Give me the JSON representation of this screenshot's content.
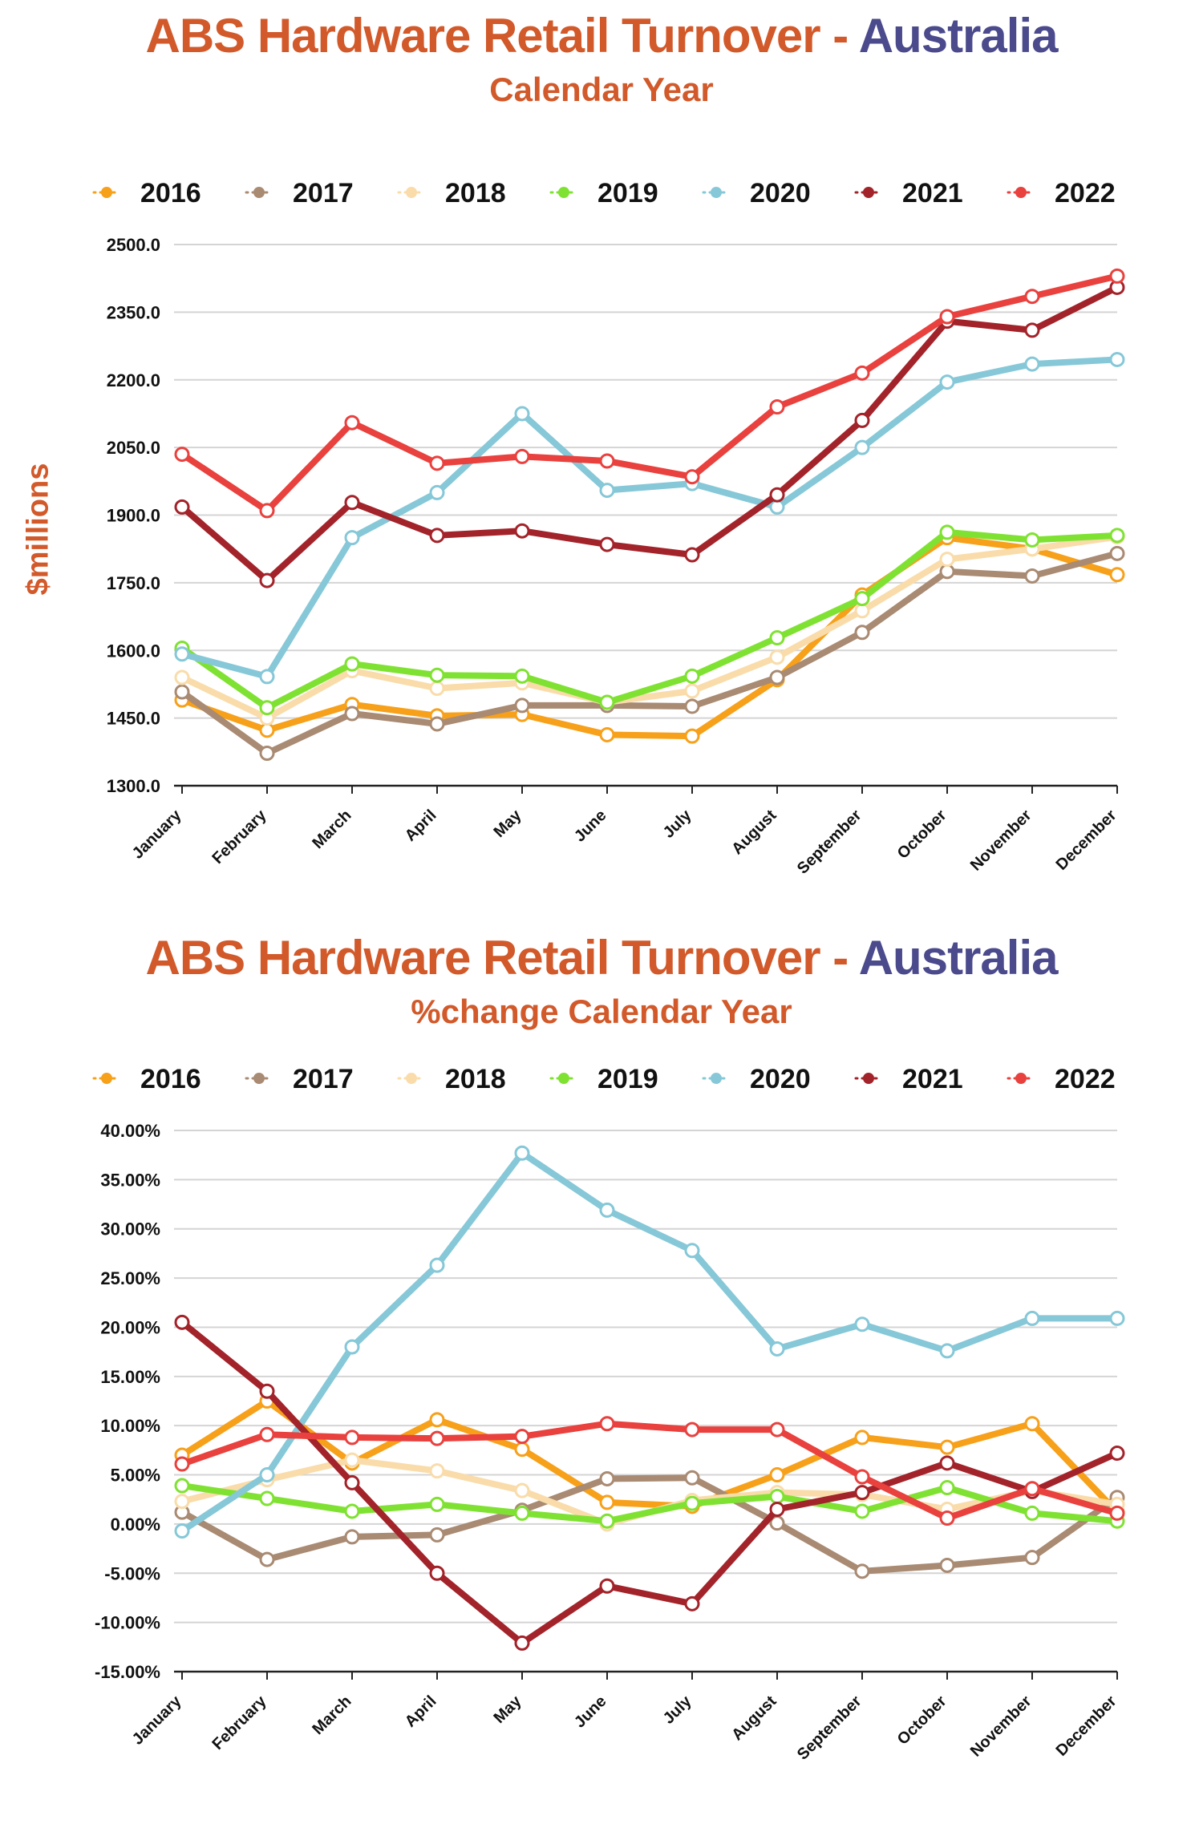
{
  "charts": [
    {
      "title_main": "ABS Hardware Retail Turnover - ",
      "title_accent": "Australia",
      "subtitle": "Calendar Year",
      "ylabel": "$millions",
      "legend": [
        {
          "name": "2016",
          "color": "#f7a01a"
        },
        {
          "name": "2017",
          "color": "#a98a72"
        },
        {
          "name": "2018",
          "color": "#f9dcaa"
        },
        {
          "name": "2019",
          "color": "#7fe232"
        },
        {
          "name": "2020",
          "color": "#86c8d8"
        },
        {
          "name": "2021",
          "color": "#a3232a"
        },
        {
          "name": "2022",
          "color": "#e8413e"
        }
      ]
    },
    {
      "title_main": "ABS Hardware Retail Turnover - ",
      "title_accent": "Australia",
      "subtitle": "%change Calendar Year",
      "ylabel": "",
      "legend": [
        {
          "name": "2016",
          "color": "#f7a01a"
        },
        {
          "name": "2017",
          "color": "#a98a72"
        },
        {
          "name": "2018",
          "color": "#f9dcaa"
        },
        {
          "name": "2019",
          "color": "#7fe232"
        },
        {
          "name": "2020",
          "color": "#86c8d8"
        },
        {
          "name": "2021",
          "color": "#a3232a"
        },
        {
          "name": "2022",
          "color": "#e8413e"
        }
      ]
    }
  ],
  "chart_data": [
    {
      "type": "line",
      "title": "ABS Hardware Retail Turnover - Australia",
      "subtitle": "Calendar Year",
      "ylabel": "$millions",
      "xlabel": "",
      "ylim": [
        1300,
        2500
      ],
      "yticks": [
        1300,
        1450,
        1600,
        1750,
        1900,
        2050,
        2200,
        2350,
        2500
      ],
      "ytick_labels": [
        "1300.0",
        "1450.0",
        "1600.0",
        "1750.0",
        "1900.0",
        "2050.0",
        "2200.0",
        "2350.0",
        "2500.0"
      ],
      "grid": "horizontal",
      "legend": "top",
      "categories": [
        "January",
        "February",
        "March",
        "April",
        "May",
        "June",
        "July",
        "August",
        "September",
        "October",
        "November",
        "December"
      ],
      "series": [
        {
          "name": "2016",
          "color": "#f7a01a",
          "values": [
            1490,
            1423,
            1480,
            1455,
            1458,
            1413,
            1410,
            1535,
            1723,
            1850,
            1825,
            1768
          ]
        },
        {
          "name": "2017",
          "color": "#a98a72",
          "values": [
            1508,
            1372,
            1460,
            1437,
            1478,
            1478,
            1476,
            1540,
            1640,
            1775,
            1765,
            1815
          ]
        },
        {
          "name": "2018",
          "color": "#f9dcaa",
          "values": [
            1540,
            1450,
            1555,
            1516,
            1528,
            1485,
            1510,
            1585,
            1688,
            1802,
            1825,
            1852
          ]
        },
        {
          "name": "2019",
          "color": "#7fe232",
          "values": [
            1605,
            1473,
            1570,
            1545,
            1543,
            1485,
            1543,
            1628,
            1715,
            1862,
            1845,
            1855
          ]
        },
        {
          "name": "2020",
          "color": "#86c8d8",
          "values": [
            1592,
            1542,
            1850,
            1950,
            2125,
            1955,
            1970,
            1918,
            2050,
            2195,
            2235,
            2245
          ]
        },
        {
          "name": "2021",
          "color": "#a3232a",
          "values": [
            1918,
            1755,
            1928,
            1855,
            1865,
            1835,
            1812,
            1945,
            2110,
            2330,
            2310,
            2405
          ]
        },
        {
          "name": "2022",
          "color": "#e8413e",
          "values": [
            2035,
            1910,
            2105,
            2015,
            2030,
            2020,
            1985,
            2140,
            2215,
            2340,
            2385,
            2430
          ]
        }
      ]
    },
    {
      "type": "line",
      "title": "ABS Hardware Retail Turnover - Australia",
      "subtitle": "%change Calendar Year",
      "ylabel": "",
      "xlabel": "",
      "ylim": [
        -15,
        40
      ],
      "yticks": [
        -15,
        -10,
        -5,
        0,
        5,
        10,
        15,
        20,
        25,
        30,
        35,
        40
      ],
      "ytick_labels": [
        "-15.00%",
        "-10.00%",
        "-5.00%",
        "0.00%",
        "5.00%",
        "10.00%",
        "15.00%",
        "20.00%",
        "25.00%",
        "30.00%",
        "35.00%",
        "40.00%"
      ],
      "grid": "horizontal",
      "legend": "top",
      "categories": [
        "January",
        "February",
        "March",
        "April",
        "May",
        "June",
        "July",
        "August",
        "September",
        "October",
        "November",
        "December"
      ],
      "series": [
        {
          "name": "2016",
          "color": "#f7a01a",
          "values": [
            7.0,
            12.5,
            6.2,
            10.6,
            7.6,
            2.2,
            1.8,
            5.0,
            8.8,
            7.8,
            10.2,
            1.2
          ]
        },
        {
          "name": "2017",
          "color": "#a98a72",
          "values": [
            1.2,
            -3.6,
            -1.3,
            -1.1,
            1.4,
            4.6,
            4.7,
            0.1,
            -4.8,
            -4.2,
            -3.4,
            2.7
          ]
        },
        {
          "name": "2018",
          "color": "#f9dcaa",
          "values": [
            2.3,
            4.5,
            6.5,
            5.4,
            3.4,
            0.0,
            2.4,
            3.2,
            3.0,
            1.5,
            3.4,
            2.0
          ]
        },
        {
          "name": "2019",
          "color": "#7fe232",
          "values": [
            3.9,
            2.6,
            1.3,
            2.0,
            1.1,
            0.3,
            2.1,
            2.8,
            1.3,
            3.7,
            1.1,
            0.3
          ]
        },
        {
          "name": "2020",
          "color": "#86c8d8",
          "values": [
            -0.7,
            5.0,
            18.0,
            26.3,
            37.7,
            31.9,
            27.8,
            17.8,
            20.3,
            17.6,
            20.9,
            20.9
          ]
        },
        {
          "name": "2021",
          "color": "#a3232a",
          "values": [
            20.5,
            13.5,
            4.2,
            -5.0,
            -12.1,
            -6.3,
            -8.1,
            1.5,
            3.2,
            6.2,
            3.3,
            7.2
          ]
        },
        {
          "name": "2022",
          "color": "#e8413e",
          "values": [
            6.1,
            9.1,
            8.8,
            8.7,
            8.9,
            10.2,
            9.6,
            9.6,
            4.8,
            0.6,
            3.6,
            1.1
          ]
        }
      ]
    }
  ]
}
